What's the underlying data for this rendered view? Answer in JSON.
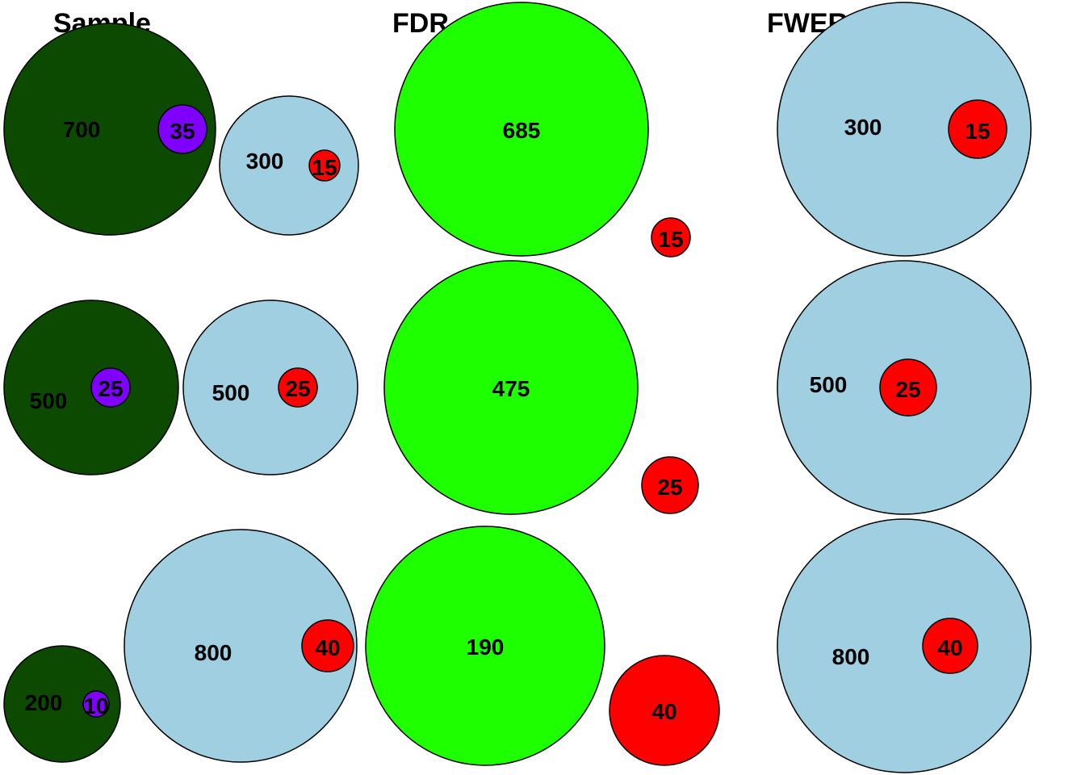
{
  "columns": [
    {
      "title": "Sample"
    },
    {
      "title": "FDR"
    },
    {
      "title": "FWER"
    }
  ],
  "colors": {
    "dark_green": "#0b4a00",
    "bright_green": "#1eff00",
    "light_blue": "#9fcfe0",
    "purple": "#8000ff",
    "red": "#ff0000",
    "stroke": "#000000"
  },
  "rows": [
    {
      "sample_green": "700",
      "sample_purple": "35",
      "sample_blue": "300",
      "sample_red": "15",
      "fdr_green": "685",
      "fdr_red": "15",
      "fwer_blue": "300",
      "fwer_red": "15"
    },
    {
      "sample_green": "500",
      "sample_purple": "25",
      "sample_blue": "500",
      "sample_red": "25",
      "fdr_green": "475",
      "fdr_red": "25",
      "fwer_blue": "500",
      "fwer_red": "25"
    },
    {
      "sample_green": "200",
      "sample_purple": "10",
      "sample_blue": "800",
      "sample_red": "40",
      "fdr_green": "190",
      "fdr_red": "40",
      "fwer_blue": "800",
      "fwer_red": "40"
    }
  ]
}
